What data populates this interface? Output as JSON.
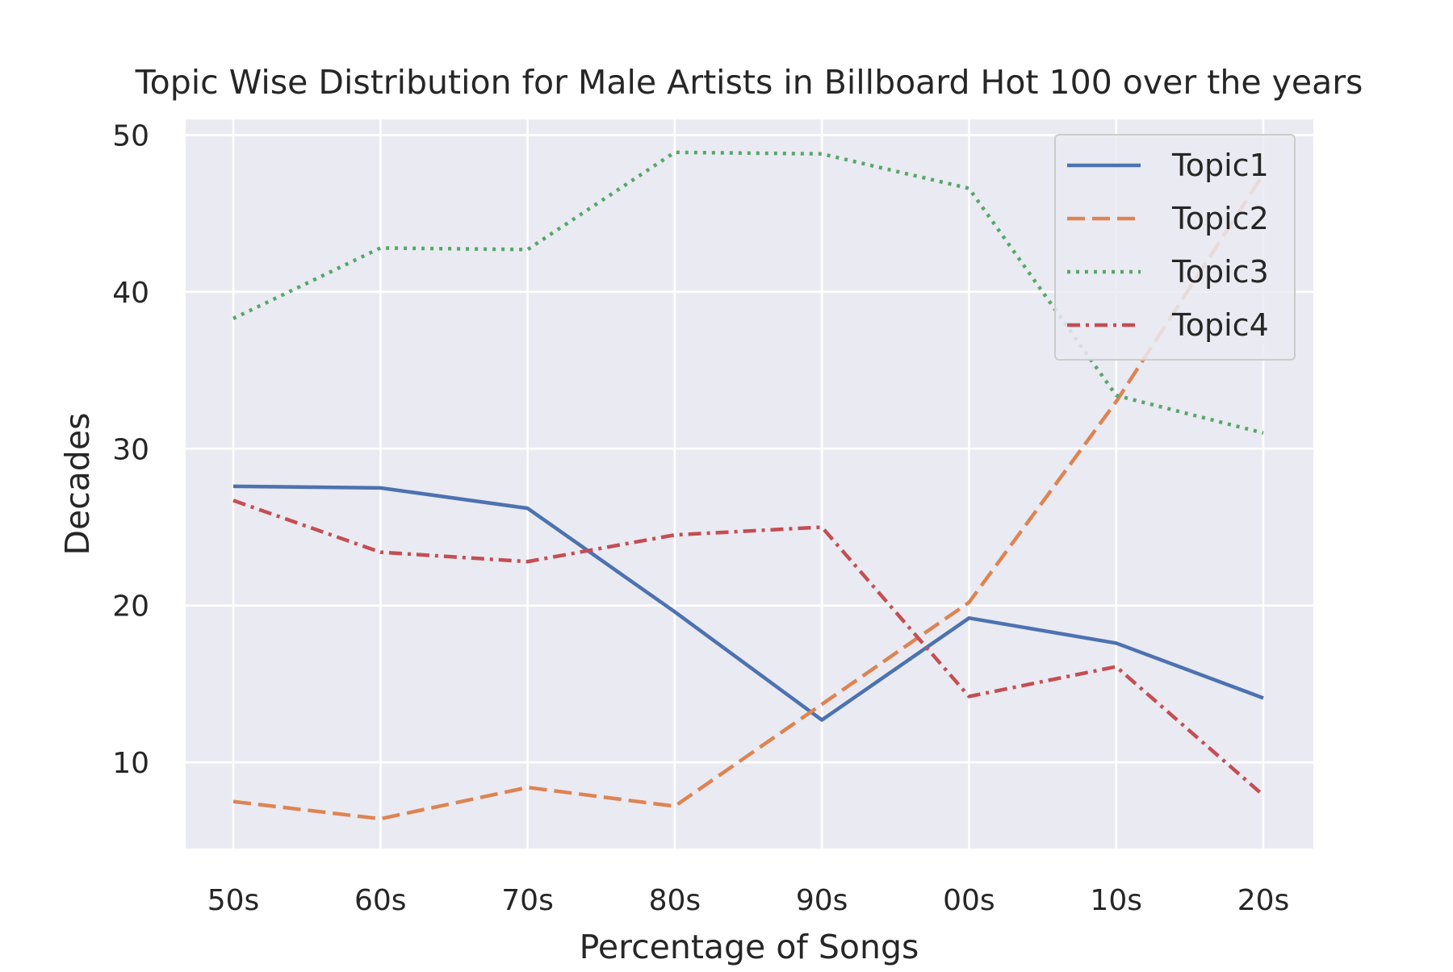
{
  "chart_data": {
    "type": "line",
    "title": "Topic Wise Distribution for Male Artists in Billboard Hot 100 over the years",
    "xlabel": "Percentage of Songs",
    "ylabel": "Decades",
    "categories": [
      "50s",
      "60s",
      "70s",
      "80s",
      "90s",
      "00s",
      "10s",
      "20s"
    ],
    "ylim": [
      4.5,
      51
    ],
    "yticks": [
      10,
      20,
      30,
      40,
      50
    ],
    "grid": true,
    "legend_position": "top-right",
    "series": [
      {
        "name": "Topic1",
        "color": "#4c72b0",
        "dash": "solid",
        "values": [
          27.6,
          27.5,
          26.2,
          19.6,
          12.7,
          19.2,
          17.6,
          14.1
        ]
      },
      {
        "name": "Topic2",
        "color": "#dd8452",
        "dash": "dashed",
        "values": [
          7.5,
          6.4,
          8.4,
          7.2,
          13.7,
          20.2,
          33.0,
          47.5
        ]
      },
      {
        "name": "Topic3",
        "color": "#55a868",
        "dash": "dotted",
        "values": [
          38.3,
          42.8,
          42.7,
          48.9,
          48.8,
          46.6,
          33.4,
          31.0
        ]
      },
      {
        "name": "Topic4",
        "color": "#c44e52",
        "dash": "dashdot",
        "values": [
          26.7,
          23.4,
          22.8,
          24.5,
          25.0,
          14.2,
          16.1,
          7.9
        ]
      }
    ]
  }
}
